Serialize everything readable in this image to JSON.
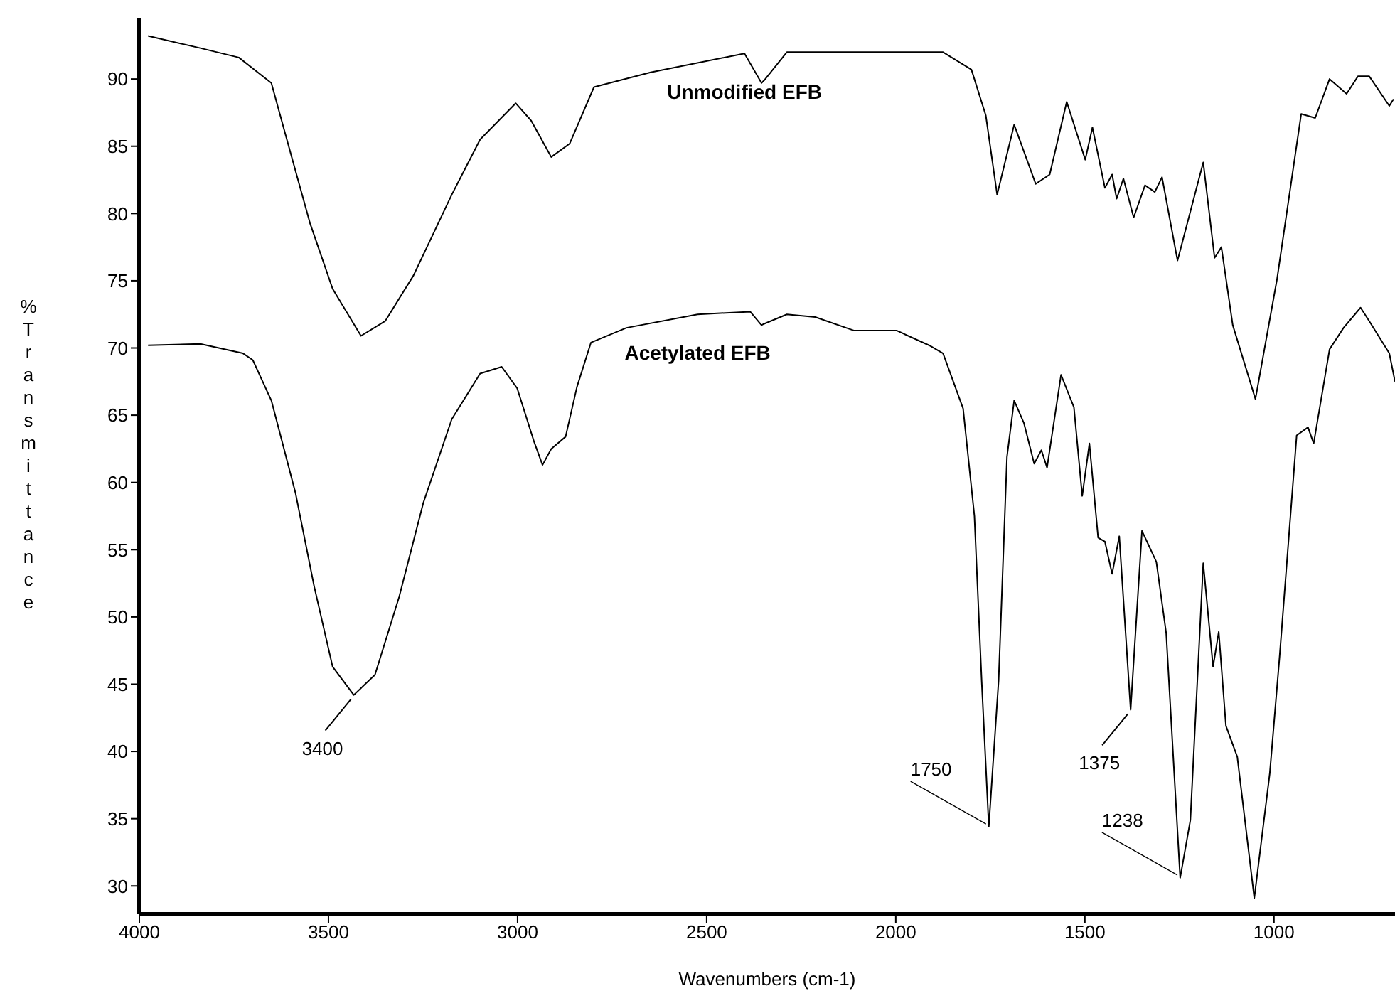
{
  "chart_data": {
    "type": "line",
    "xlabel": "Wavenumbers (cm-1)",
    "ylabel": "%Transmittance",
    "xlim": [
      4000,
      680
    ],
    "ylim": [
      27.9,
      94.5
    ],
    "xticks": [
      4000,
      3500,
      3000,
      2500,
      2000,
      1500,
      1000
    ],
    "yticks": [
      30,
      35,
      40,
      45,
      50,
      55,
      60,
      65,
      70,
      75,
      80,
      85,
      90
    ],
    "grid": false,
    "legend": false,
    "series": [
      {
        "name": "Unmodified EFB",
        "color": "#000000",
        "x": [
          3977,
          3839,
          3737,
          3651,
          3613,
          3549,
          3489,
          3414,
          3350,
          3275,
          3174,
          3099,
          3005,
          2964,
          2911,
          2862,
          2798,
          2648,
          2400,
          2355,
          2348,
          2288,
          1875,
          1800,
          1762,
          1732,
          1687,
          1630,
          1593,
          1548,
          1499,
          1480,
          1447,
          1428,
          1416,
          1398,
          1371,
          1341,
          1315,
          1296,
          1255,
          1187,
          1157,
          1139,
          1109,
          1049,
          992,
          928,
          891,
          853,
          808,
          778,
          748,
          695,
          684
        ],
        "values": [
          93.2,
          92.3,
          91.6,
          89.7,
          85.8,
          79.3,
          74.4,
          70.9,
          72.0,
          75.4,
          81.4,
          85.5,
          88.2,
          86.9,
          84.2,
          85.2,
          89.4,
          90.5,
          91.9,
          89.7,
          89.9,
          92.0,
          92.0,
          90.7,
          87.3,
          81.4,
          86.6,
          82.2,
          82.9,
          88.3,
          84.0,
          86.4,
          81.9,
          82.9,
          81.1,
          82.6,
          79.7,
          82.1,
          81.6,
          82.7,
          76.5,
          83.8,
          76.7,
          77.5,
          71.7,
          66.2,
          75.1,
          87.4,
          87.1,
          90.0,
          88.9,
          90.2,
          90.2,
          88.0,
          88.5
        ]
      },
      {
        "name": "Acetylated EFB",
        "color": "#000000",
        "x": [
          3977,
          3839,
          3726,
          3700,
          3651,
          3587,
          3538,
          3489,
          3433,
          3377,
          3313,
          3249,
          3174,
          3099,
          3042,
          3001,
          2956,
          2934,
          2911,
          2873,
          2843,
          2806,
          2712,
          2524,
          2385,
          2355,
          2348,
          2288,
          2213,
          2111,
          1998,
          1912,
          1875,
          1822,
          1792,
          1773,
          1754,
          1728,
          1706,
          1687,
          1661,
          1634,
          1615,
          1600,
          1563,
          1529,
          1507,
          1488,
          1465,
          1447,
          1428,
          1409,
          1379,
          1349,
          1311,
          1285,
          1248,
          1221,
          1187,
          1161,
          1146,
          1127,
          1097,
          1052,
          1011,
          985,
          940,
          910,
          895,
          853,
          816,
          771,
          748,
          695,
          680
        ],
        "values": [
          70.2,
          70.3,
          69.6,
          69.1,
          66.1,
          59.2,
          52.3,
          46.3,
          44.2,
          45.7,
          51.5,
          58.5,
          64.7,
          68.1,
          68.6,
          67.0,
          63.0,
          61.3,
          62.5,
          63.4,
          67.1,
          70.4,
          71.5,
          72.5,
          72.7,
          71.7,
          71.8,
          72.5,
          72.3,
          71.3,
          71.3,
          70.2,
          69.6,
          65.5,
          57.5,
          45.3,
          34.4,
          45.3,
          61.9,
          66.1,
          64.4,
          61.4,
          62.4,
          61.1,
          68.0,
          65.6,
          59.0,
          62.9,
          55.9,
          55.6,
          53.2,
          56.0,
          43.1,
          56.4,
          54.1,
          48.8,
          30.6,
          34.9,
          54.0,
          46.3,
          48.9,
          41.9,
          39.6,
          29.1,
          38.4,
          47.1,
          63.5,
          64.1,
          62.9,
          69.9,
          71.5,
          73.0,
          72.0,
          69.6,
          67.5
        ]
      }
    ],
    "annotations": [
      {
        "text": "3400",
        "x": 3433,
        "y": 44.2
      },
      {
        "text": "1750",
        "x": 1754,
        "y": 34.4
      },
      {
        "text": "1375",
        "x": 1379,
        "y": 43.1
      },
      {
        "text": "1238",
        "x": 1248,
        "y": 30.6
      }
    ]
  }
}
